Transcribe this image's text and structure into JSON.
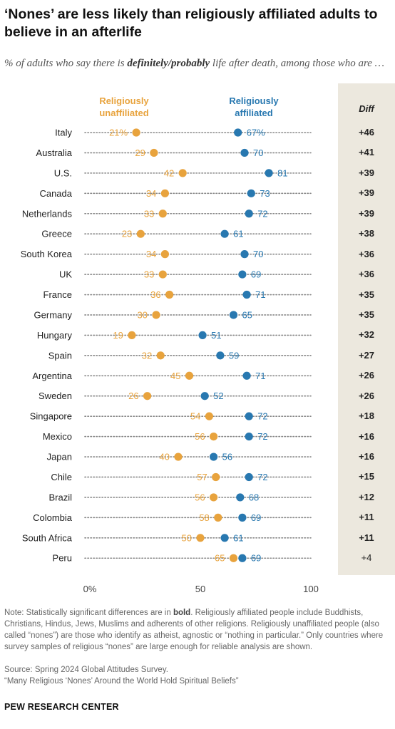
{
  "title": "‘Nones’ are less likely than religiously affiliated adults to believe in an afterlife",
  "subtitle_pre": "% of adults who say there is ",
  "subtitle_em": "definitely/probably",
  "subtitle_post": " life after death, among those who are …",
  "legend": {
    "unaffiliated": "Religiously unaffiliated",
    "affiliated": "Religiously affiliated"
  },
  "diff_header": "Diff",
  "colors": {
    "unaffiliated": "#e8a33d",
    "affiliated": "#2878b0",
    "diff_bg": "#ece8de"
  },
  "chart_data": {
    "type": "dot",
    "xlim": [
      0,
      100
    ],
    "xticks": [
      "0%",
      "50",
      "100"
    ],
    "categories": [
      "Italy",
      "Australia",
      "U.S.",
      "Canada",
      "Netherlands",
      "Greece",
      "South Korea",
      "UK",
      "France",
      "Germany",
      "Hungary",
      "Spain",
      "Argentina",
      "Sweden",
      "Singapore",
      "Mexico",
      "Japan",
      "Chile",
      "Brazil",
      "Colombia",
      "South Africa",
      "Peru"
    ],
    "series": [
      {
        "name": "Religiously unaffiliated",
        "values": [
          21,
          29,
          42,
          34,
          33,
          23,
          34,
          33,
          36,
          30,
          19,
          32,
          45,
          26,
          54,
          56,
          40,
          57,
          56,
          58,
          50,
          65
        ]
      },
      {
        "name": "Religiously affiliated",
        "values": [
          67,
          70,
          81,
          73,
          72,
          61,
          70,
          69,
          71,
          65,
          51,
          59,
          71,
          52,
          72,
          72,
          56,
          72,
          68,
          69,
          61,
          69
        ]
      }
    ],
    "diff": [
      "+46",
      "+41",
      "+39",
      "+39",
      "+39",
      "+38",
      "+36",
      "+36",
      "+35",
      "+35",
      "+32",
      "+27",
      "+26",
      "+26",
      "+18",
      "+16",
      "+16",
      "+15",
      "+12",
      "+11",
      "+11",
      "+4"
    ],
    "diff_bold": [
      true,
      true,
      true,
      true,
      true,
      true,
      true,
      true,
      true,
      true,
      true,
      true,
      true,
      true,
      true,
      true,
      true,
      true,
      true,
      true,
      true,
      false
    ],
    "first_label_suffix": "%"
  },
  "note_pre": "Note: Statistically significant differences are in ",
  "note_bold": "bold",
  "note_post": ". Religiously affiliated people include Buddhists, Christians, Hindus, Jews, Muslims and adherents of other religions. Religiously unaffiliated people (also called “nones”) are those who identify as atheist, agnostic or “nothing in particular.” Only countries where survey samples of religious “nones” are large enough for reliable analysis are shown.",
  "source": "Source: Spring 2024 Global Attitudes Survey.",
  "report": "“Many Religious ‘Nones’ Around the World Hold Spiritual Beliefs”",
  "brand": "PEW RESEARCH CENTER"
}
